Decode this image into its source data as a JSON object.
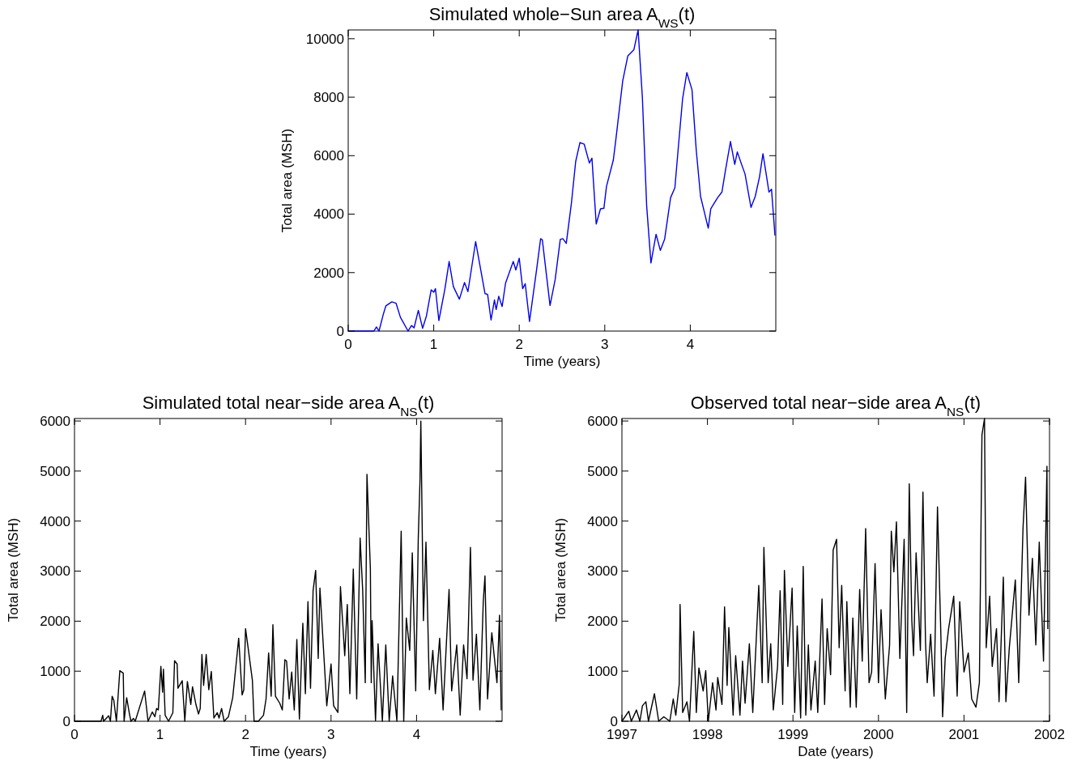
{
  "chart_data": [
    {
      "type": "line",
      "title": "Simulated whole−Sun area A$_{WS}$(t)",
      "xlabel": "Time (years)",
      "ylabel": "Total area (MSH)",
      "color": "#0000ee",
      "xlim": [
        0,
        5
      ],
      "ylim": [
        0,
        10300
      ],
      "xticks": [
        0,
        1,
        2,
        3,
        4
      ],
      "yticks": [
        0,
        2000,
        4000,
        6000,
        8000,
        10000
      ],
      "x": [
        0,
        0.3,
        0.33,
        0.36,
        0.41,
        0.44,
        0.51,
        0.56,
        0.61,
        0.7,
        0.74,
        0.77,
        0.82,
        0.87,
        0.915,
        0.97,
        1.0,
        1.02,
        1.06,
        1.13,
        1.18,
        1.23,
        1.3,
        1.36,
        1.4,
        1.49,
        1.6,
        1.63,
        1.67,
        1.71,
        1.73,
        1.76,
        1.8,
        1.84,
        1.93,
        1.96,
        2.0,
        2.04,
        2.07,
        2.12,
        2.2,
        2.25,
        2.27,
        2.36,
        2.42,
        2.48,
        2.51,
        2.55,
        2.61,
        2.66,
        2.71,
        2.76,
        2.82,
        2.85,
        2.9,
        2.95,
        2.99,
        3.02,
        3.1,
        3.13,
        3.21,
        3.27,
        3.34,
        3.39,
        3.44,
        3.49,
        3.54,
        3.6,
        3.65,
        3.7,
        3.77,
        3.82,
        3.86,
        3.91,
        3.96,
        4.02,
        4.07,
        4.12,
        4.21,
        4.24,
        4.32,
        4.37,
        4.41,
        4.47,
        4.52,
        4.55,
        4.6,
        4.64,
        4.71,
        4.76,
        4.81,
        4.85,
        4.89,
        4.92,
        4.95,
        4.99
      ],
      "values": [
        0,
        0,
        140,
        0,
        570,
        860,
        1000,
        950,
        475,
        0,
        190,
        110,
        710,
        95,
        520,
        1410,
        1330,
        1450,
        360,
        1430,
        2380,
        1520,
        1090,
        1660,
        1350,
        3060,
        1280,
        1255,
        380,
        1065,
        740,
        1190,
        840,
        1640,
        2380,
        2090,
        2490,
        1450,
        1620,
        330,
        2040,
        3160,
        3120,
        875,
        1760,
        3140,
        3160,
        3000,
        4375,
        5800,
        6450,
        6390,
        5750,
        5915,
        3660,
        4180,
        4200,
        4945,
        5850,
        6560,
        8560,
        9415,
        9620,
        10300,
        7990,
        4280,
        2330,
        3310,
        2760,
        3140,
        4565,
        4900,
        6280,
        7940,
        8840,
        8255,
        6180,
        4610,
        3520,
        4185,
        4565,
        4755,
        5470,
        6485,
        5700,
        6130,
        5700,
        5375,
        4230,
        4610,
        5280,
        6065,
        5325,
        4755,
        4850,
        3280
      ]
    },
    {
      "type": "line",
      "title": "Simulated total near−side area A$_{NS}$(t)",
      "xlabel": "Time (years)",
      "ylabel": "Total area (MSH)",
      "color": "#000000",
      "xlim": [
        0,
        5
      ],
      "ylim": [
        0,
        6050
      ],
      "xticks": [
        0,
        1,
        2,
        3,
        4
      ],
      "yticks": [
        0,
        1000,
        2000,
        3000,
        4000,
        5000,
        6000
      ],
      "x": [
        0,
        0.31,
        0.33,
        0.34,
        0.4,
        0.42,
        0.44,
        0.46,
        0.49,
        0.53,
        0.57,
        0.58,
        0.61,
        0.64,
        0.66,
        0.69,
        0.71,
        0.82,
        0.86,
        0.91,
        0.94,
        0.96,
        0.98,
        1.01,
        1.03,
        1.04,
        1.06,
        1.1,
        1.15,
        1.17,
        1.2,
        1.21,
        1.26,
        1.29,
        1.32,
        1.36,
        1.38,
        1.42,
        1.45,
        1.47,
        1.49,
        1.51,
        1.54,
        1.57,
        1.6,
        1.63,
        1.67,
        1.69,
        1.72,
        1.75,
        1.8,
        1.85,
        1.89,
        1.92,
        1.96,
        1.98,
        2.0,
        2.03,
        2.08,
        2.1,
        2.15,
        2.21,
        2.24,
        2.27,
        2.3,
        2.32,
        2.35,
        2.4,
        2.43,
        2.46,
        2.48,
        2.51,
        2.54,
        2.57,
        2.6,
        2.63,
        2.67,
        2.7,
        2.73,
        2.76,
        2.79,
        2.82,
        2.85,
        2.87,
        2.92,
        2.95,
        3.0,
        3.03,
        3.08,
        3.11,
        3.16,
        3.19,
        3.22,
        3.26,
        3.3,
        3.34,
        3.37,
        3.4,
        3.42,
        3.46,
        3.47,
        3.48,
        3.52,
        3.55,
        3.6,
        3.64,
        3.68,
        3.72,
        3.77,
        3.82,
        3.85,
        3.88,
        3.92,
        3.95,
        3.99,
        4.02,
        4.04,
        4.05,
        4.08,
        4.11,
        4.15,
        4.19,
        4.22,
        4.27,
        4.31,
        4.38,
        4.41,
        4.47,
        4.51,
        4.55,
        4.59,
        4.63,
        4.66,
        4.7,
        4.74,
        4.78,
        4.8,
        4.83,
        4.88,
        4.94,
        4.97,
        4.99
      ],
      "values": [
        0,
        0,
        120,
        0,
        110,
        0,
        500,
        415,
        0,
        1010,
        960,
        0,
        470,
        170,
        0,
        55,
        0,
        605,
        0,
        185,
        90,
        255,
        225,
        1095,
        580,
        1040,
        120,
        0,
        170,
        1210,
        1145,
        660,
        810,
        0,
        795,
        335,
        690,
        335,
        145,
        255,
        1335,
        715,
        1335,
        630,
        995,
        65,
        170,
        65,
        255,
        0,
        90,
        470,
        1145,
        1660,
        525,
        630,
        1850,
        1470,
        820,
        0,
        0,
        120,
        445,
        1365,
        500,
        1930,
        500,
        360,
        225,
        1230,
        1200,
        445,
        985,
        225,
        1635,
        40,
        1960,
        550,
        2390,
        660,
        2610,
        3015,
        1255,
        2660,
        1200,
        310,
        1145,
        310,
        175,
        2690,
        1310,
        2335,
        550,
        3040,
        445,
        3660,
        2610,
        770,
        4935,
        3040,
        770,
        2010,
        10,
        1550,
        0,
        1525,
        0,
        905,
        0,
        3800,
        0,
        2065,
        1415,
        3365,
        605,
        3660,
        4800,
        6000,
        2010,
        3580,
        630,
        1415,
        550,
        1660,
        225,
        2635,
        605,
        1525,
        120,
        1525,
        850,
        3475,
        820,
        1740,
        225,
        2390,
        2905,
        445,
        1770,
        770,
        2120,
        225
      ]
    },
    {
      "type": "line",
      "title": "Observed total near−side area A$_{NS}$(t)",
      "xlabel": "Date (years)",
      "ylabel": "Total area (MSH)",
      "color": "#000000",
      "xlim": [
        1997,
        2002
      ],
      "ylim": [
        0,
        6050
      ],
      "xticks": [
        1997,
        1998,
        1999,
        2000,
        2001,
        2002
      ],
      "yticks": [
        0,
        1000,
        2000,
        3000,
        4000,
        5000,
        6000
      ],
      "x": [
        1997.0,
        1997.08,
        1997.11,
        1997.17,
        1997.21,
        1997.24,
        1997.28,
        1997.31,
        1997.38,
        1997.43,
        1997.49,
        1997.56,
        1997.6,
        1997.63,
        1997.67,
        1997.68,
        1997.71,
        1997.76,
        1997.79,
        1997.84,
        1997.87,
        1997.9,
        1997.95,
        1997.98,
        1998.01,
        1998.06,
        1998.1,
        1998.12,
        1998.17,
        1998.2,
        1998.23,
        1998.25,
        1998.3,
        1998.33,
        1998.38,
        1998.41,
        1998.44,
        1998.49,
        1998.53,
        1998.57,
        1998.6,
        1998.64,
        1998.66,
        1998.71,
        1998.74,
        1998.77,
        1998.82,
        1998.85,
        1998.88,
        1998.9,
        1998.94,
        1998.99,
        1999.02,
        1999.05,
        1999.09,
        1999.12,
        1999.15,
        1999.18,
        1999.21,
        1999.26,
        1999.29,
        1999.34,
        1999.37,
        1999.4,
        1999.44,
        1999.47,
        1999.51,
        1999.54,
        1999.57,
        1999.61,
        1999.63,
        1999.67,
        1999.7,
        1999.74,
        1999.78,
        1999.81,
        1999.85,
        1999.89,
        1999.92,
        1999.96,
        2000.0,
        2000.03,
        2000.08,
        2000.13,
        2000.15,
        2000.18,
        2000.21,
        2000.25,
        2000.3,
        2000.33,
        2000.36,
        2000.39,
        2000.41,
        2000.44,
        2000.49,
        2000.52,
        2000.55,
        2000.57,
        2000.61,
        2000.65,
        2000.69,
        2000.73,
        2000.75,
        2000.78,
        2000.82,
        2000.88,
        2000.92,
        2000.95,
        2001.0,
        2001.05,
        2001.09,
        2001.14,
        2001.18,
        2001.21,
        2001.24,
        2001.26,
        2001.3,
        2001.33,
        2001.38,
        2001.41,
        2001.46,
        2001.49,
        2001.53,
        2001.6,
        2001.64,
        2001.69,
        2001.72,
        2001.76,
        2001.8,
        2001.84,
        2001.88,
        2001.93,
        2001.97,
        2001.98
      ],
      "values": [
        0,
        200,
        0,
        225,
        0,
        310,
        390,
        0,
        550,
        0,
        90,
        0,
        445,
        120,
        740,
        2335,
        175,
        390,
        0,
        1795,
        175,
        1065,
        605,
        1010,
        0,
        770,
        225,
        875,
        335,
        2285,
        715,
        1875,
        120,
        1310,
        120,
        1200,
        360,
        1550,
        175,
        1605,
        2715,
        770,
        3475,
        770,
        1550,
        225,
        1095,
        2610,
        335,
        3015,
        1095,
        2660,
        175,
        1905,
        65,
        3095,
        120,
        1525,
        225,
        1200,
        175,
        2445,
        335,
        1850,
        930,
        3420,
        3635,
        1470,
        2715,
        605,
        2390,
        280,
        2065,
        280,
        2635,
        1200,
        3850,
        770,
        985,
        3150,
        770,
        2230,
        445,
        1525,
        3800,
        2985,
        3985,
        1255,
        3635,
        175,
        4745,
        2010,
        1310,
        3365,
        1415,
        4580,
        1580,
        770,
        1740,
        500,
        4285,
        1690,
        90,
        1255,
        1850,
        2500,
        500,
        2390,
        985,
        1365,
        445,
        280,
        770,
        5720,
        6050,
        1470,
        2500,
        1095,
        1850,
        390,
        2880,
        390,
        1470,
        2825,
        770,
        3850,
        4880,
        2120,
        3255,
        1525,
        3580,
        1200,
        5095,
        1850
      ]
    }
  ]
}
